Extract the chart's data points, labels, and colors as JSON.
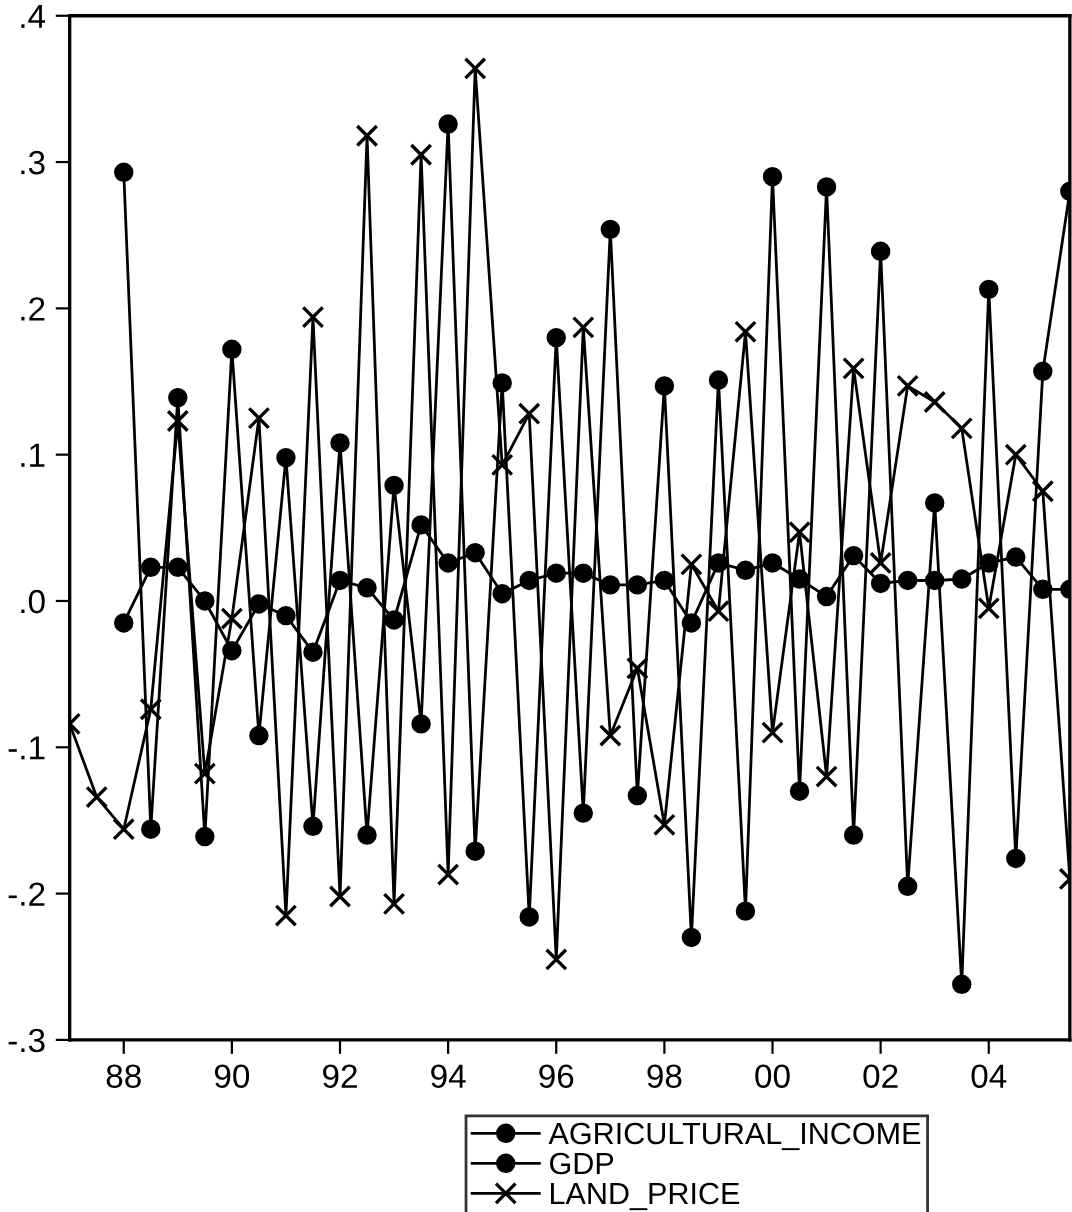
{
  "chart_data": {
    "type": "line",
    "x": [
      1987,
      1987.5,
      1988,
      1988.5,
      1989,
      1989.5,
      1990,
      1990.5,
      1991,
      1991.5,
      1992,
      1992.5,
      1993,
      1993.5,
      1994,
      1994.5,
      1995,
      1995.5,
      1996,
      1996.5,
      1997,
      1997.5,
      1998,
      1998.5,
      1999,
      1999.5,
      2000,
      2000.5,
      2001,
      2001.5,
      2002,
      2002.5,
      2003,
      2003.5,
      2004,
      2004.5,
      2005,
      2005.5
    ],
    "series": [
      {
        "name": "AGRICULTURAL_INCOME",
        "color": "#000000",
        "marker": "circle",
        "values": [
          null,
          null,
          0.293,
          -0.156,
          0.139,
          -0.161,
          0.172,
          -0.092,
          0.098,
          -0.154,
          0.108,
          -0.16,
          0.079,
          -0.084,
          0.326,
          -0.171,
          0.149,
          -0.216,
          0.18,
          -0.145,
          0.254,
          -0.133,
          0.147,
          -0.23,
          0.151,
          -0.212,
          0.29,
          -0.13,
          0.283,
          -0.16,
          0.239,
          -0.195,
          0.067,
          -0.262,
          0.213,
          -0.176,
          0.157,
          0.28
        ]
      },
      {
        "name": "GDP",
        "color": "#000000",
        "marker": "circle",
        "values": [
          null,
          null,
          -0.015,
          0.023,
          0.023,
          0.0,
          -0.034,
          -0.002,
          -0.01,
          -0.035,
          0.014,
          0.009,
          -0.013,
          0.052,
          0.026,
          0.033,
          0.005,
          0.014,
          0.019,
          0.019,
          0.011,
          0.011,
          0.014,
          -0.015,
          0.026,
          0.021,
          0.026,
          0.015,
          0.003,
          0.031,
          0.012,
          0.014,
          0.014,
          0.015,
          0.026,
          0.03,
          0.008,
          0.008
        ]
      },
      {
        "name": "LAND_PRICE",
        "color": "#000000",
        "marker": "cross",
        "values": [
          -0.084,
          -0.134,
          -0.156,
          -0.074,
          0.123,
          -0.118,
          -0.012,
          0.125,
          -0.215,
          0.194,
          -0.202,
          0.318,
          -0.207,
          0.305,
          -0.187,
          0.364,
          0.093,
          0.128,
          -0.245,
          0.187,
          -0.092,
          -0.046,
          -0.153,
          0.025,
          -0.007,
          0.184,
          -0.09,
          0.047,
          -0.12,
          0.159,
          0.026,
          0.147,
          0.136,
          0.118,
          -0.005,
          0.1,
          0.075,
          -0.19
        ]
      }
    ],
    "xlim": [
      1987,
      2005.5
    ],
    "xticks": [
      {
        "value": 1988,
        "label": "88"
      },
      {
        "value": 1990,
        "label": "90"
      },
      {
        "value": 1992,
        "label": "92"
      },
      {
        "value": 1994,
        "label": "94"
      },
      {
        "value": 1996,
        "label": "96"
      },
      {
        "value": 1998,
        "label": "98"
      },
      {
        "value": 2000,
        "label": "00"
      },
      {
        "value": 2002,
        "label": "02"
      },
      {
        "value": 2004,
        "label": "04"
      }
    ],
    "ylim": [
      -0.3,
      0.4
    ],
    "yticks": [
      {
        "value": -0.3,
        "label": "-.3"
      },
      {
        "value": -0.2,
        "label": "-.2"
      },
      {
        "value": -0.1,
        "label": "-.1"
      },
      {
        "value": 0.0,
        "label": ".0"
      },
      {
        "value": 0.1,
        "label": ".1"
      },
      {
        "value": 0.2,
        "label": ".2"
      },
      {
        "value": 0.3,
        "label": ".3"
      },
      {
        "value": 0.4,
        "label": ".4"
      }
    ],
    "grid": false,
    "legend": "bottom",
    "line_style": "solid"
  }
}
